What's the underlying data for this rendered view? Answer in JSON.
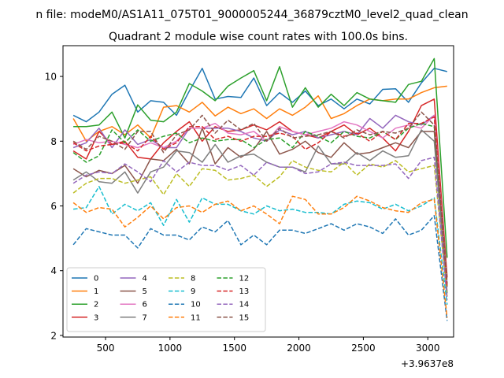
{
  "chart_data": {
    "type": "line",
    "suptitle": "n file: modeM0/AS1A11_075T01_9000005244_36879cztM0_level2_quad_clean",
    "title": "Quadrant 2 module wise count rates with 100.0s bins.",
    "xlabel": "",
    "ylabel": "",
    "x_offset_label": "+3.9637e8",
    "xlim": [
      170,
      3200
    ],
    "ylim": [
      1.95,
      10.95
    ],
    "xticks": [
      500,
      1000,
      1500,
      2000,
      2500,
      3000
    ],
    "yticks": [
      2,
      4,
      6,
      8,
      10
    ],
    "legend_position": "lower-left",
    "legend_columns": 4,
    "x": [
      250,
      350,
      450,
      550,
      650,
      750,
      850,
      950,
      1050,
      1150,
      1250,
      1350,
      1450,
      1550,
      1650,
      1750,
      1850,
      1950,
      2050,
      2150,
      2250,
      2350,
      2450,
      2550,
      2650,
      2750,
      2850,
      2950,
      3050,
      3150
    ],
    "series": [
      {
        "name": "0",
        "color": "#1f77b4",
        "dash": "solid",
        "values": [
          8.8,
          8.6,
          8.9,
          9.45,
          9.73,
          8.9,
          9.25,
          9.2,
          8.8,
          9.55,
          10.25,
          9.3,
          9.38,
          9.35,
          9.95,
          9.1,
          9.5,
          9.2,
          9.55,
          9.1,
          9.3,
          9.0,
          9.3,
          9.15,
          9.6,
          9.62,
          9.2,
          9.8,
          10.25,
          10.15
        ]
      },
      {
        "name": "1",
        "color": "#ff7f0e",
        "dash": "solid",
        "values": [
          8.7,
          8.0,
          8.3,
          8.45,
          8.2,
          8.5,
          8.1,
          9.05,
          9.1,
          8.9,
          9.2,
          8.78,
          9.05,
          8.85,
          9.0,
          8.7,
          9.0,
          8.8,
          9.05,
          9.4,
          8.7,
          8.85,
          9.1,
          9.3,
          9.25,
          9.3,
          9.3,
          9.5,
          9.65,
          9.7
        ]
      },
      {
        "name": "2",
        "color": "#2ca02c",
        "dash": "solid",
        "values": [
          8.45,
          8.45,
          8.5,
          8.9,
          8.1,
          9.12,
          8.65,
          8.6,
          8.9,
          9.78,
          9.55,
          9.25,
          9.7,
          9.95,
          10.18,
          9.25,
          10.3,
          9.05,
          9.65,
          9.05,
          9.45,
          9.1,
          9.5,
          9.3,
          9.25,
          9.2,
          9.75,
          9.85,
          10.55,
          4.4
        ]
      },
      {
        "name": "3",
        "color": "#d62728",
        "dash": "solid",
        "values": [
          7.7,
          7.45,
          8.3,
          7.9,
          8.0,
          7.5,
          7.45,
          7.95,
          8.3,
          8.6,
          8.0,
          8.45,
          8.3,
          8.35,
          8.5,
          8.35,
          8.6,
          8.3,
          8.2,
          8.1,
          8.3,
          8.5,
          8.2,
          8.4,
          8.1,
          7.7,
          8.3,
          9.1,
          9.3,
          3.8
        ]
      },
      {
        "name": "4",
        "color": "#9467bd",
        "dash": "solid",
        "values": [
          7.8,
          7.95,
          8.4,
          7.8,
          8.35,
          7.9,
          8.05,
          7.8,
          7.8,
          8.4,
          8.4,
          8.4,
          8.4,
          8.3,
          8.1,
          8.0,
          8.35,
          8.2,
          8.3,
          8.1,
          8.2,
          8.3,
          8.2,
          8.7,
          8.4,
          8.8,
          8.6,
          8.5,
          8.8,
          3.3
        ]
      },
      {
        "name": "5",
        "color": "#8c564b",
        "dash": "solid",
        "values": [
          7.15,
          6.9,
          7.1,
          7.0,
          7.25,
          6.7,
          7.45,
          7.4,
          7.75,
          7.3,
          8.4,
          7.3,
          7.8,
          7.5,
          7.75,
          8.3,
          7.6,
          7.75,
          8.0,
          7.65,
          7.5,
          7.95,
          7.6,
          7.65,
          7.8,
          7.95,
          7.8,
          8.3,
          8.3,
          3.5
        ]
      },
      {
        "name": "6",
        "color": "#e377c2",
        "dash": "solid",
        "values": [
          7.9,
          8.05,
          7.95,
          8.0,
          7.9,
          7.8,
          7.95,
          7.8,
          8.0,
          8.4,
          8.4,
          8.55,
          8.25,
          8.2,
          8.3,
          8.0,
          8.45,
          8.3,
          8.2,
          8.3,
          8.4,
          8.6,
          8.5,
          8.3,
          8.1,
          8.4,
          8.5,
          8.4,
          8.8,
          3.6
        ]
      },
      {
        "name": "7",
        "color": "#7f7f7f",
        "dash": "solid",
        "values": [
          6.8,
          7.05,
          6.75,
          6.7,
          7.05,
          6.4,
          7.05,
          7.2,
          7.7,
          7.65,
          7.35,
          7.9,
          7.35,
          7.55,
          7.6,
          7.35,
          7.2,
          7.2,
          7.05,
          7.85,
          7.3,
          7.3,
          7.65,
          7.4,
          7.7,
          7.5,
          7.55,
          8.35,
          8.0,
          3.3
        ]
      },
      {
        "name": "8",
        "color": "#bcbd22",
        "dash": "dashed",
        "values": [
          6.4,
          6.7,
          6.85,
          6.85,
          6.7,
          6.8,
          6.9,
          6.35,
          7.0,
          6.6,
          7.15,
          7.1,
          6.8,
          6.85,
          6.95,
          6.6,
          6.9,
          7.4,
          7.2,
          7.1,
          7.05,
          7.35,
          6.95,
          7.3,
          7.2,
          7.4,
          7.05,
          7.15,
          7.25,
          3.2
        ]
      },
      {
        "name": "9",
        "color": "#17becf",
        "dash": "dashed",
        "values": [
          5.9,
          5.95,
          6.6,
          5.75,
          6.05,
          5.85,
          6.1,
          5.4,
          6.2,
          5.5,
          6.25,
          6.05,
          6.05,
          5.85,
          5.75,
          6.0,
          5.85,
          5.9,
          5.8,
          5.8,
          5.75,
          6.05,
          6.15,
          6.1,
          5.9,
          6.05,
          5.85,
          6.0,
          6.25,
          2.95
        ]
      },
      {
        "name": "10",
        "color": "#1f77b4",
        "dash": "dashed",
        "values": [
          4.8,
          5.3,
          5.2,
          5.1,
          5.1,
          4.7,
          5.3,
          5.1,
          5.1,
          4.95,
          5.35,
          5.2,
          5.55,
          4.8,
          5.1,
          4.8,
          5.25,
          5.25,
          5.15,
          5.3,
          5.45,
          5.25,
          5.45,
          5.35,
          5.15,
          5.6,
          5.1,
          5.25,
          5.7,
          2.45
        ]
      },
      {
        "name": "11",
        "color": "#ff7f0e",
        "dash": "dashed",
        "values": [
          6.1,
          5.8,
          5.95,
          5.9,
          5.35,
          5.65,
          6.0,
          5.6,
          5.95,
          6.0,
          5.8,
          6.05,
          6.15,
          5.85,
          6.0,
          5.75,
          5.45,
          6.3,
          6.2,
          5.75,
          5.75,
          5.95,
          6.3,
          6.15,
          5.95,
          5.85,
          5.8,
          6.1,
          6.2,
          2.55
        ]
      },
      {
        "name": "12",
        "color": "#2ca02c",
        "dash": "dashed",
        "values": [
          7.65,
          7.35,
          7.55,
          8.35,
          7.95,
          8.35,
          8.0,
          8.15,
          8.25,
          7.95,
          8.1,
          8.0,
          8.05,
          8.05,
          7.8,
          8.05,
          8.1,
          7.8,
          8.3,
          8.15,
          7.95,
          8.3,
          8.15,
          8.1,
          8.3,
          8.05,
          8.4,
          8.55,
          8.45,
          3.6
        ]
      },
      {
        "name": "13",
        "color": "#d62728",
        "dash": "dashed",
        "values": [
          7.95,
          7.7,
          7.85,
          7.9,
          7.95,
          7.7,
          8.15,
          7.75,
          7.95,
          8.45,
          8.45,
          8.05,
          8.15,
          8.0,
          8.15,
          8.15,
          8.25,
          8.15,
          7.75,
          7.95,
          8.3,
          8.15,
          8.25,
          8.0,
          8.3,
          8.05,
          8.55,
          8.55,
          8.75,
          3.5
        ]
      },
      {
        "name": "14",
        "color": "#9467bd",
        "dash": "dashed",
        "values": [
          6.7,
          6.95,
          7.05,
          7.0,
          7.3,
          7.05,
          6.75,
          7.4,
          7.05,
          7.35,
          7.25,
          7.25,
          7.1,
          7.25,
          6.95,
          7.35,
          7.2,
          7.2,
          7.0,
          7.05,
          7.3,
          7.35,
          7.25,
          7.25,
          7.25,
          7.3,
          6.85,
          7.4,
          7.5,
          3.1
        ]
      },
      {
        "name": "15",
        "color": "#8c564b",
        "dash": "dashed",
        "values": [
          8.0,
          7.75,
          8.15,
          8.0,
          7.75,
          8.3,
          8.3,
          7.65,
          8.2,
          8.35,
          8.8,
          8.25,
          8.65,
          8.35,
          8.55,
          8.0,
          8.4,
          8.1,
          8.15,
          8.2,
          8.3,
          8.1,
          8.35,
          8.2,
          8.3,
          8.25,
          8.4,
          8.9,
          8.5,
          3.7
        ]
      }
    ]
  }
}
